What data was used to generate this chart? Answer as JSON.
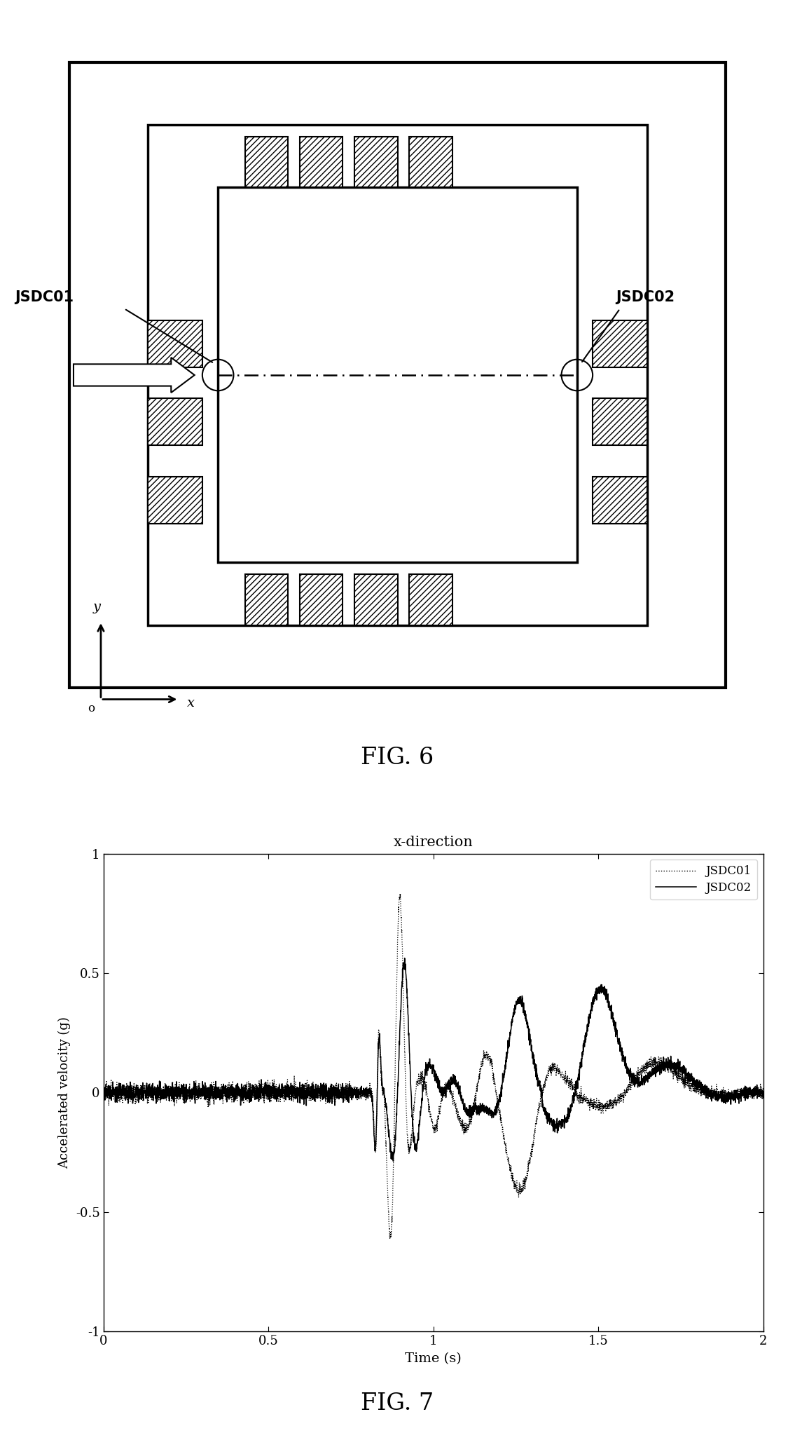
{
  "fig6_title": "FIG. 6",
  "fig7_title": "FIG. 7",
  "chart_title": "x-direction",
  "ylabel": "Accelerated velocity (g)",
  "xlabel": "Time (s)",
  "ylim": [
    -1,
    1
  ],
  "xlim": [
    0,
    2
  ],
  "yticks": [
    -1,
    -0.5,
    0,
    0.5,
    1
  ],
  "xticks": [
    0,
    0.5,
    1,
    1.5,
    2
  ],
  "legend_labels": [
    "JSDC01",
    "JSDC02"
  ],
  "background_color": "#ffffff"
}
